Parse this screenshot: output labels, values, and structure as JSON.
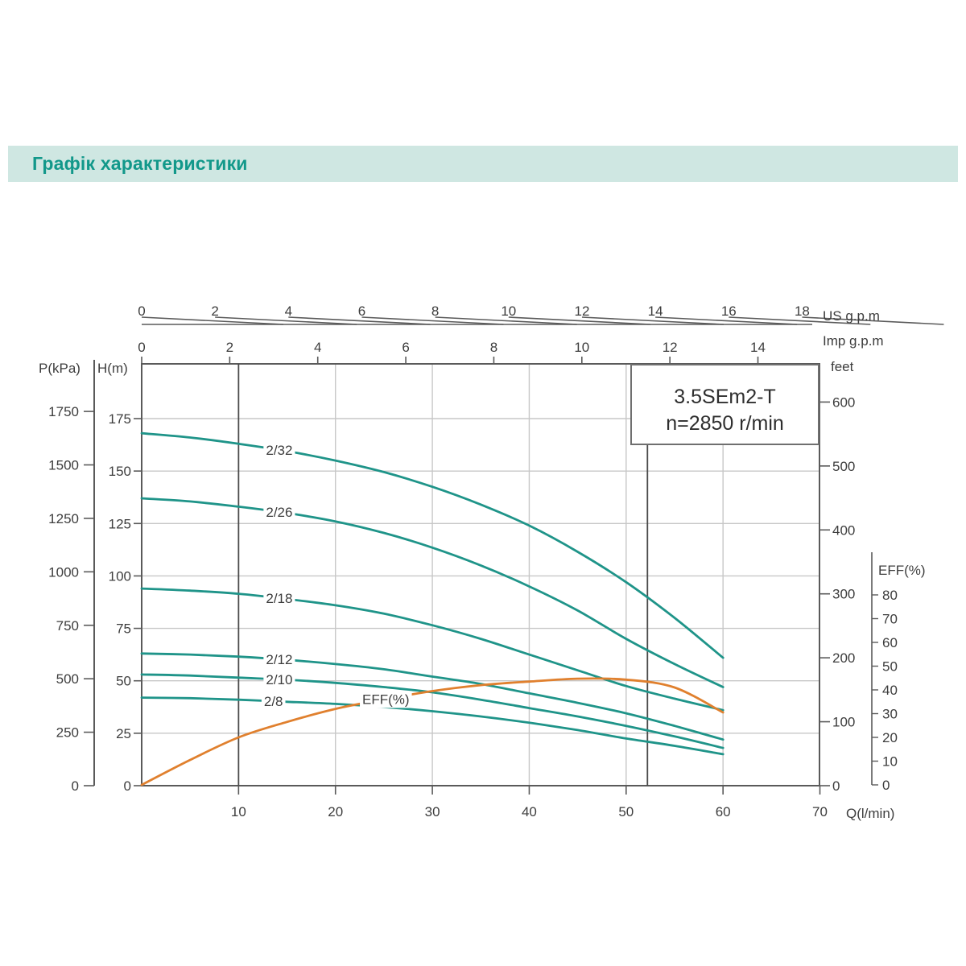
{
  "page": {
    "title": "Графік характеристики",
    "colors": {
      "accent": "#12988a",
      "banner_bg": "#cfe7e2",
      "head_curve": "#1f9489",
      "eff_curve": "#e0802e",
      "grid": "#c7c7c7",
      "axis": "#5a5a5a",
      "marker_line": "#4a4a4a",
      "text": "#3d3d3d"
    }
  },
  "model_box": {
    "model": "3.5SEm2-T",
    "speed": "n=2850 r/min"
  },
  "axes": {
    "us_gpm": {
      "title": "US g.p.m",
      "ticks": [
        0,
        2,
        4,
        6,
        8,
        10,
        12,
        14,
        16,
        18
      ]
    },
    "imp_gpm": {
      "title": "Imp g.p.m",
      "ticks": [
        0,
        2,
        4,
        6,
        8,
        10,
        12,
        14
      ]
    },
    "pressure": {
      "title": "P(kPa)",
      "ticks": [
        0,
        250,
        500,
        750,
        1000,
        1250,
        1500,
        1750
      ]
    },
    "head": {
      "title": "H(m)",
      "ticks": [
        0,
        25,
        50,
        75,
        100,
        125,
        150,
        175
      ]
    },
    "feet": {
      "title": "feet",
      "ticks": [
        0,
        100,
        200,
        300,
        400,
        500,
        600
      ]
    },
    "eff": {
      "title": "EFF(%)",
      "ticks": [
        0,
        10,
        20,
        30,
        40,
        50,
        60,
        70,
        80
      ]
    },
    "flow": {
      "title": "Q(l/min)",
      "ticks": [
        10,
        20,
        30,
        40,
        50,
        60,
        70
      ]
    }
  },
  "chart_data": {
    "type": "line",
    "title": "3.5SEm2-T n=2850 r/min pump characteristic curves",
    "xlabel": "Q(l/min)",
    "x_range_lmin": [
      0,
      70
    ],
    "left_axes": {
      "H_m": [
        0,
        190
      ],
      "P_kPa": [
        0,
        1900
      ]
    },
    "right_axes": {
      "feet": [
        0,
        660
      ],
      "EFF_pct": [
        0,
        85
      ]
    },
    "top_axes": {
      "US_gpm": [
        0,
        18
      ],
      "Imp_gpm": [
        0,
        14
      ]
    },
    "grid": true,
    "legend_position": "on-curve labels",
    "vertical_marker_lines_lmin": [
      10,
      52.2
    ],
    "x": [
      0,
      5,
      10,
      15,
      20,
      25,
      30,
      35,
      40,
      45,
      50,
      55,
      60
    ],
    "series": [
      {
        "name": "2/32",
        "axis": "head",
        "unit": "m",
        "values": [
          168,
          166,
          163,
          159.5,
          155,
          149.5,
          142.5,
          134,
          124,
          111.5,
          97,
          80,
          61
        ]
      },
      {
        "name": "2/26",
        "axis": "head",
        "unit": "m",
        "values": [
          137,
          135.5,
          133,
          130,
          126,
          120.5,
          113.5,
          105,
          95,
          83.5,
          70,
          58,
          47
        ]
      },
      {
        "name": "2/18",
        "axis": "head",
        "unit": "m",
        "values": [
          94,
          93,
          91.5,
          89,
          86,
          82,
          76.5,
          70,
          62.5,
          55,
          47.5,
          41.5,
          36
        ]
      },
      {
        "name": "2/12",
        "axis": "head",
        "unit": "m",
        "values": [
          63,
          62.5,
          61.5,
          60,
          58,
          55.5,
          52,
          48.5,
          44,
          39.5,
          34.5,
          28.5,
          22
        ]
      },
      {
        "name": "2/10",
        "axis": "head",
        "unit": "m",
        "values": [
          53,
          52.5,
          51.5,
          50.5,
          49,
          47,
          44.5,
          41,
          37,
          33,
          28.5,
          23.5,
          18
        ]
      },
      {
        "name": "2/8",
        "axis": "head",
        "unit": "m",
        "values": [
          42,
          41.7,
          41,
          40,
          39,
          37.5,
          35.5,
          33,
          30,
          26.5,
          22.5,
          19,
          15
        ]
      },
      {
        "name": "EFF(%)",
        "axis": "eff",
        "unit": "%",
        "values": [
          0,
          10.5,
          20,
          26.5,
          32,
          36,
          39.5,
          42,
          43.5,
          44.7,
          44.3,
          41,
          30.5
        ]
      }
    ]
  }
}
